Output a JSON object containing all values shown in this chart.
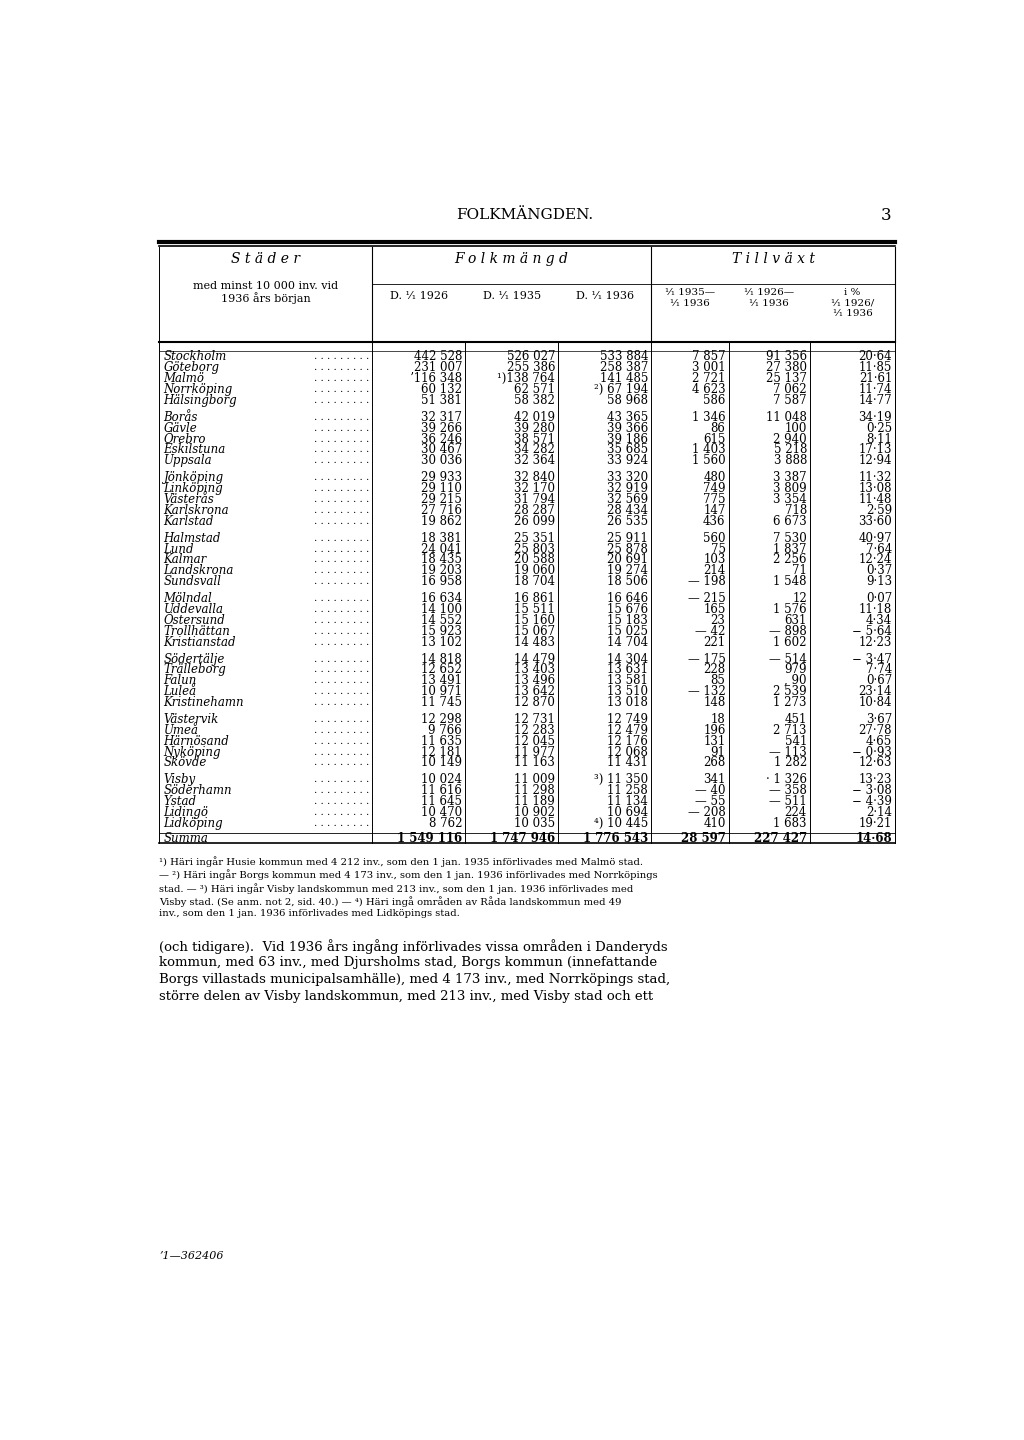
{
  "page_title": "FOLKMÄNGDEN.",
  "page_number": "3",
  "col_header1": "S t ä d e r",
  "col_header1_sub": "med minst 10 000 inv. vid\n1936 års början",
  "col_header2": "F o l k m ä n g d",
  "col_header3": "T i l l v ä x t",
  "rows": [
    [
      "Stockholm",
      "442 528",
      "526 027",
      "533 884",
      "7 857",
      "91 356",
      "20·64"
    ],
    [
      "Göteborg",
      "231 007",
      "255 386",
      "258 387",
      "3 001",
      "27 380",
      "11·85"
    ],
    [
      "Malmö",
      "ʼ116 348",
      "¹)138 764",
      "141 485",
      "2 721",
      "25 137",
      "21·61"
    ],
    [
      "Norrköping",
      "60 132",
      "62 571",
      "²) 67 194",
      "4 623",
      "7 062",
      "11·74"
    ],
    [
      "Hälsingborg",
      "51 381",
      "58 382",
      "58 968",
      "586",
      "7 587",
      "14·77"
    ],
    [
      "",
      "",
      "",
      "",
      "",
      "",
      ""
    ],
    [
      "Borås",
      "32 317",
      "42 019",
      "43 365",
      "1 346",
      "11 048",
      "34·19"
    ],
    [
      "Gävle",
      "39 266",
      "39 280",
      "39 366",
      "86",
      "100",
      "0·25"
    ],
    [
      "Örebro",
      "36 246",
      "38 571",
      "39 186",
      "615",
      "2 940",
      "8·11"
    ],
    [
      "Eskilstuna",
      "30 467",
      "34 282",
      "35 685",
      "1 403",
      "5 218",
      "17·13"
    ],
    [
      "Uppsala",
      "30 036",
      "32 364",
      "33 924",
      "1 560",
      "3 888",
      "12·94"
    ],
    [
      "",
      "",
      "",
      "",
      "",
      "",
      ""
    ],
    [
      "Jönköping",
      "29 933",
      "32 840",
      "33 320",
      "480",
      "3 387",
      "11·32"
    ],
    [
      "Linköping",
      "29 110",
      "32 170",
      "32 919",
      "749",
      "3 809",
      "13·08"
    ],
    [
      "Västerås",
      "29 215",
      "31 794",
      "32 569",
      "775",
      "3 354",
      "11·48"
    ],
    [
      "Karlskrona",
      "27 716",
      "28 287",
      "28 434",
      "147",
      "718",
      "2·59"
    ],
    [
      "Karlstad",
      "19 862",
      "26 099",
      "26 535",
      "436",
      "6 673",
      "33·60"
    ],
    [
      "",
      "",
      "",
      "",
      "",
      "",
      ""
    ],
    [
      "Halmstad",
      "18 381",
      "25 351",
      "25 911",
      "560",
      "7 530",
      "40·97"
    ],
    [
      "Lund",
      "24 041",
      "25 803",
      "25 878",
      "75",
      "1 837",
      "7·64"
    ],
    [
      "Kalmar",
      "18 435",
      "20 588",
      "20 691",
      "103",
      "2 256",
      "12·24"
    ],
    [
      "Landskrona",
      "19 203",
      "19 060",
      "19 274",
      "214",
      "71",
      "0·37"
    ],
    [
      "Sundsvall",
      "16 958",
      "18 704",
      "18 506",
      "— 198",
      "1 548",
      "9·13"
    ],
    [
      "",
      "",
      "",
      "",
      "",
      "",
      ""
    ],
    [
      "Mölndal",
      "16 634",
      "16 861",
      "16 646",
      "— 215",
      "12",
      "0·07"
    ],
    [
      "Uddevalla",
      "14 100",
      "15 511",
      "15 676",
      "165",
      "1 576",
      "11·18"
    ],
    [
      "Östersund",
      "14 552",
      "15 160",
      "15 183",
      "23",
      "631",
      "4·34"
    ],
    [
      "Trollhättan",
      "15 923",
      "15 067",
      "15 025",
      "— 42",
      "— 898",
      "− 5·64"
    ],
    [
      "Kristianstad",
      "13 102",
      "14 483",
      "14 704",
      "221",
      "1 602",
      "12·23"
    ],
    [
      "",
      "",
      "",
      "",
      "",
      "",
      ""
    ],
    [
      "Södertälje",
      "14 818",
      "14 479",
      "14 304",
      "— 175",
      "— 514",
      "− 3·47"
    ],
    [
      "Trälleborg",
      "12 652",
      "13 403",
      "13 631",
      "228",
      "979",
      "7·74"
    ],
    [
      "Falun",
      "13 491",
      "13 496",
      "13 581",
      "85",
      ", 90",
      "0·67"
    ],
    [
      "Luleå",
      "10 971",
      "13 642",
      "13 510",
      "— 132",
      "2 539",
      "23·14"
    ],
    [
      "Kristinehamn",
      "11 745",
      "12 870",
      "13 018",
      "148",
      "1 273",
      "10·84"
    ],
    [
      "",
      "",
      "",
      "",
      "",
      "",
      ""
    ],
    [
      "Västervik",
      "12 298",
      "12 731",
      "12 749",
      "18",
      "451",
      "3·67"
    ],
    [
      "Umeå",
      "9 766",
      "12 283",
      "12 479",
      "196",
      "2 713",
      "27·78"
    ],
    [
      "Härnösand",
      "11 635",
      "12 045",
      "12 176",
      "131",
      "541",
      "4·65"
    ],
    [
      "Nyköping",
      "12 181",
      "11 977",
      "12 068",
      "91",
      "— 113",
      "− 0·93"
    ],
    [
      "Skövde",
      "10 149",
      "11 163",
      "11 431",
      "268",
      "1 282",
      "12·63"
    ],
    [
      "",
      "",
      "",
      "",
      "",
      "",
      ""
    ],
    [
      "Visby",
      "10 024",
      "11 009",
      "³) 11 350",
      "341",
      "· 1 326",
      "13·23"
    ],
    [
      "Söderhamn",
      "11 616",
      "11 298",
      "11 258",
      "— 40",
      "— 358",
      "− 3·08"
    ],
    [
      "Ystad",
      "11 645",
      "11 189",
      "11 134",
      "— 55",
      "— 511",
      "− 4·39"
    ],
    [
      "Lidingö",
      "10 470",
      "10 902",
      "10 694",
      "— 208",
      "224",
      "2·14"
    ],
    [
      "Lidköping",
      "8 762",
      "10 035",
      "⁴) 10 445",
      "410",
      "1 683",
      "19·21"
    ]
  ],
  "summa_row": [
    "Summa",
    "1 549 116",
    "1 747 946",
    "1 776 543",
    "28 597",
    "227 427",
    "14·68"
  ],
  "footnotes": [
    "¹) Häri ingår Husie kommun med 4 212 inv., som den 1 jan. 1935 införlivades med Malmö stad.",
    "— ²) Häri ingår Borgs kommun med 4 173 inv., som den 1 jan. 1936 införlivades med Norrköpings",
    "stad. — ³) Häri ingår Visby landskommun med 213 inv., som den 1 jan. 1936 införlivades med",
    "Visby stad. (Se anm. not 2, sid. 40.) — ⁴) Häri ingå områden av Råda landskommun med 49",
    "inv., som den 1 jan. 1936 införlivades med Lidköpings stad."
  ],
  "body_text_lines": [
    "(och tidigare).  Vid 1936 års ingång införlivades vissa områden i Danderyds",
    "kommun, med 63 inv., med Djursholms stad, Borgs kommun (innefattande",
    "Borgs villastads municipalsamhälle), med 4 173 inv., med Norrköpings stad,",
    "större delen av Visby landskommun, med 213 inv., med Visby stad och ett"
  ],
  "footer": "’1—362406"
}
